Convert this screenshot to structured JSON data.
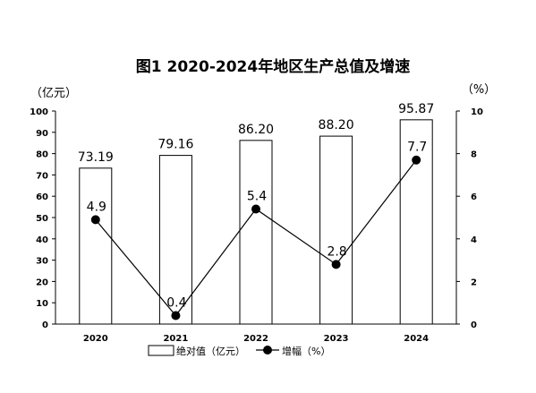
{
  "chart_data": {
    "type": "bar+line",
    "title": "图1  2020-2024年地区生产总值及增速",
    "left_unit": "（亿元）",
    "right_unit": "（%）",
    "categories": [
      "2020",
      "2021",
      "2022",
      "2023",
      "2024"
    ],
    "series": [
      {
        "name": "绝对值（亿元）",
        "type": "bar",
        "axis": "left",
        "values": [
          73.19,
          79.16,
          86.2,
          88.2,
          95.87
        ],
        "labels": [
          "73.19",
          "79.16",
          "86.20",
          "88.20",
          "95.87"
        ]
      },
      {
        "name": "增幅（%）",
        "type": "line",
        "axis": "right",
        "values": [
          4.9,
          0.4,
          5.4,
          2.8,
          7.7
        ],
        "labels": [
          "4.9",
          "0.4",
          "5.4",
          "2.8",
          "7.7"
        ]
      }
    ],
    "ylim_left": [
      0,
      100
    ],
    "ylim_right": [
      0,
      10
    ],
    "yticks_left": [
      "0",
      "10",
      "20",
      "30",
      "40",
      "50",
      "60",
      "70",
      "80",
      "90",
      "100"
    ],
    "yticks_right": [
      "0",
      "2",
      "4",
      "6",
      "8",
      "10"
    ],
    "grid": false,
    "legend_position": "bottom"
  }
}
